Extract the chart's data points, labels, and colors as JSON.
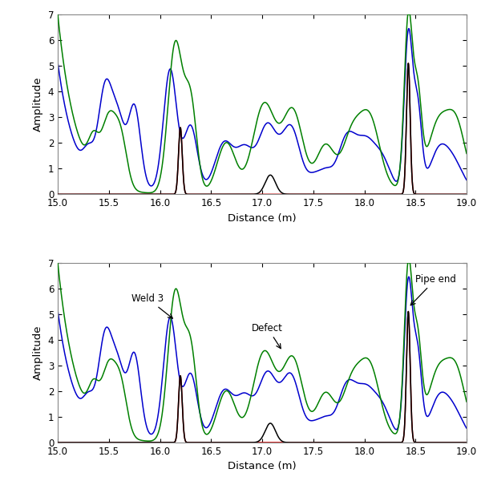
{
  "xlim": [
    15,
    19
  ],
  "ylim": [
    0,
    7
  ],
  "xlabel": "Distance (m)",
  "ylabel": "Amplitude",
  "xticks": [
    15,
    15.5,
    16,
    16.5,
    17,
    17.5,
    18,
    18.5,
    19
  ],
  "yticks": [
    0,
    1,
    2,
    3,
    4,
    5,
    6,
    7
  ],
  "colors": {
    "green": "#008000",
    "blue": "#0000CD",
    "red": "#CC0000",
    "black": "#000000"
  },
  "figsize": [
    6.0,
    6.0
  ],
  "dpi": 100
}
